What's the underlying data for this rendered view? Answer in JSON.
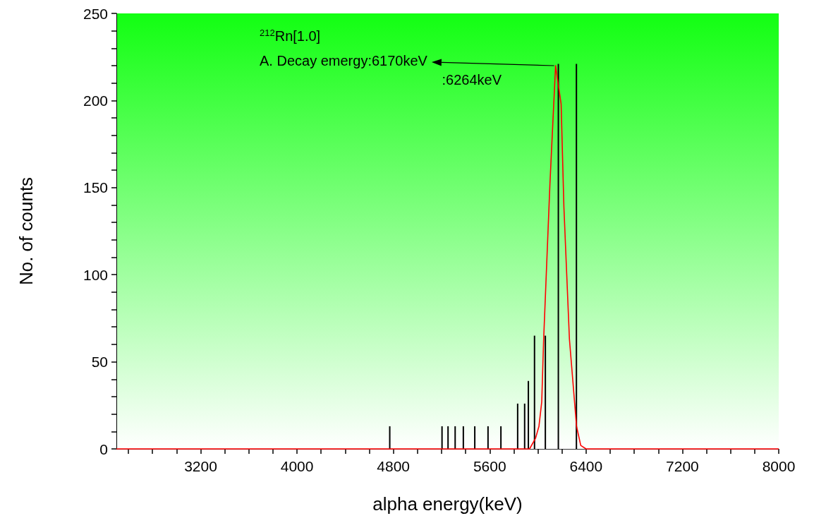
{
  "chart_data": {
    "type": "bar",
    "xlabel": "alpha energy(keV)",
    "ylabel": "No. of counts",
    "xlim": [
      2500,
      8000
    ],
    "xticks": [
      {
        "value": 2600,
        "label": null
      },
      {
        "value": 2800,
        "label": null
      },
      {
        "value": 3000,
        "label": null
      },
      3200,
      {
        "value": 3400,
        "label": null
      },
      {
        "value": 3600,
        "label": null
      },
      {
        "value": 3800,
        "label": null
      },
      4000,
      {
        "value": 4200,
        "label": null
      },
      {
        "value": 4400,
        "label": null
      },
      {
        "value": 4600,
        "label": null
      },
      4800,
      {
        "value": 5000,
        "label": null
      },
      {
        "value": 5200,
        "label": null
      },
      {
        "value": 5400,
        "label": null
      },
      5600,
      {
        "value": 5800,
        "label": null
      },
      {
        "value": 6000,
        "label": null
      },
      {
        "value": 6200,
        "label": null
      },
      6400,
      {
        "value": 6600,
        "label": null
      },
      {
        "value": 6800,
        "label": null
      },
      {
        "value": 7000,
        "label": null
      },
      7200,
      {
        "value": 7400,
        "label": null
      },
      {
        "value": 7600,
        "label": null
      },
      {
        "value": 7800,
        "label": null
      },
      8000
    ],
    "ylim": [
      0,
      250
    ],
    "yticks": [
      0,
      {
        "value": 10,
        "label": null
      },
      {
        "value": 20,
        "label": null
      },
      {
        "value": 30,
        "label": null
      },
      {
        "value": 40,
        "label": null
      },
      50,
      {
        "value": 60,
        "label": null
      },
      {
        "value": 70,
        "label": null
      },
      {
        "value": 80,
        "label": null
      },
      {
        "value": 90,
        "label": null
      },
      100,
      {
        "value": 110,
        "label": null
      },
      {
        "value": 120,
        "label": null
      },
      {
        "value": 130,
        "label": null
      },
      {
        "value": 140,
        "label": null
      },
      150,
      {
        "value": 160,
        "label": null
      },
      {
        "value": 170,
        "label": null
      },
      {
        "value": 180,
        "label": null
      },
      {
        "value": 190,
        "label": null
      },
      200,
      {
        "value": 210,
        "label": null
      },
      {
        "value": 220,
        "label": null
      },
      {
        "value": 230,
        "label": null
      },
      {
        "value": 240,
        "label": null
      },
      250
    ],
    "series": [
      {
        "color": "#000000",
        "x": [
          4770,
          5204,
          5254,
          5313,
          5381,
          5476,
          5586,
          5693,
          5832,
          5890,
          5921,
          5972,
          6062,
          6170,
          6320
        ],
        "values": [
          13,
          13,
          13,
          13,
          13,
          13,
          13,
          13,
          26,
          26,
          39,
          65,
          65,
          221,
          221
        ]
      },
      {
        "type": "line",
        "color": "#ff0000",
        "marker": "none",
        "line_style": "solid",
        "x": [
          2500,
          5931,
          5980,
          6009,
          6032,
          6048,
          6100,
          6147,
          6193,
          6216,
          6262,
          6321,
          6356,
          6400,
          8000
        ],
        "values": [
          0,
          0,
          6,
          13,
          27,
          63,
          152,
          220,
          198,
          139,
          63,
          13,
          2,
          0,
          0
        ]
      }
    ],
    "annotations": [
      "$^{212}$Rn[1.0]",
      {
        "text": "A. Decay emergy:6170keV",
        "x": 6147,
        "y": 220
      },
      ":6264keV"
    ]
  }
}
